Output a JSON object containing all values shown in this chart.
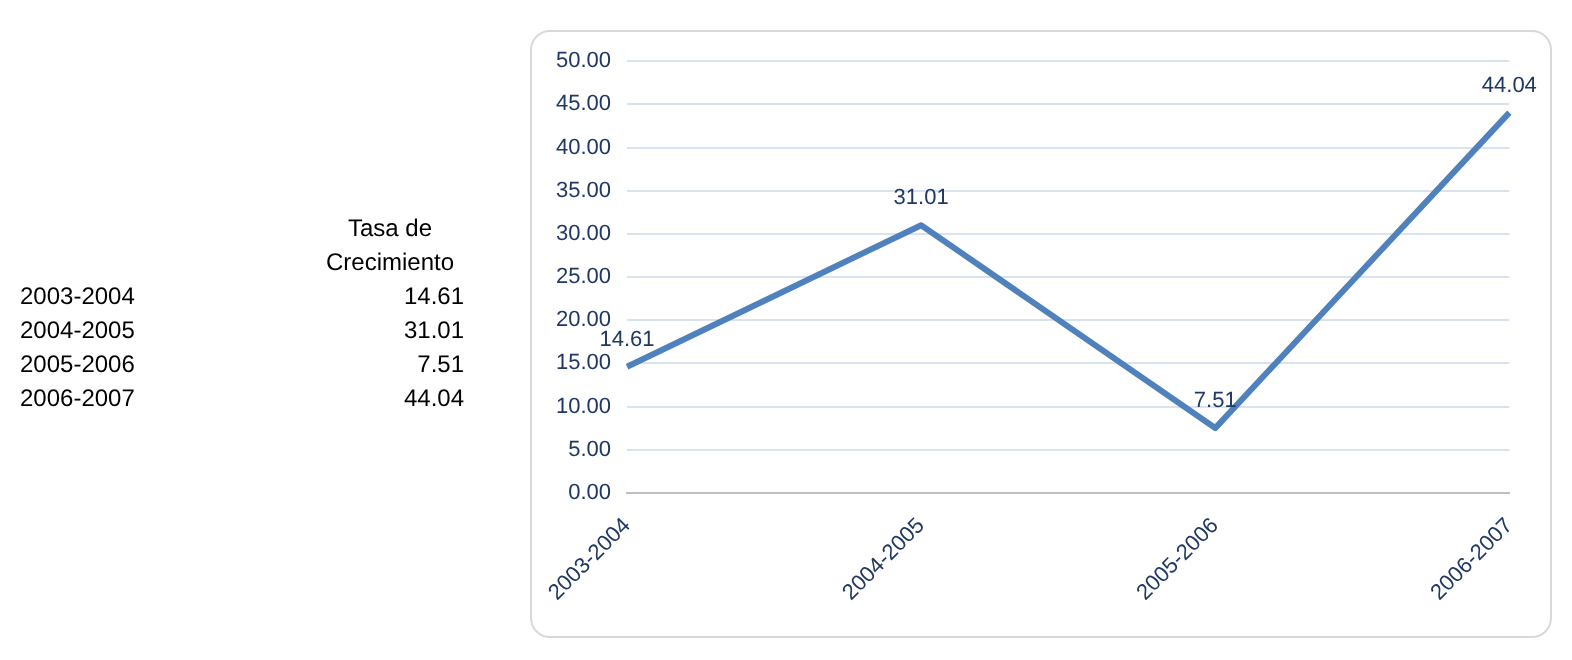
{
  "chart_data": {
    "type": "line",
    "categories": [
      "2003-2004",
      "2004-2005",
      "2005-2006",
      "2006-2007"
    ],
    "series": [
      {
        "name": "Tasa de Crecimiento",
        "color": "#4f81bd",
        "values": [
          14.61,
          31.01,
          7.51,
          44.04
        ]
      }
    ],
    "annotations": [
      "14.61",
      "31.01",
      "7.51",
      "44.04"
    ],
    "ylim": [
      0,
      50
    ],
    "yticks": [
      {
        "value": 0,
        "label": "0.00"
      },
      {
        "value": 5,
        "label": "5.00"
      },
      {
        "value": 10,
        "label": "10.00"
      },
      {
        "value": 15,
        "label": "15.00"
      },
      {
        "value": 20,
        "label": "20.00"
      },
      {
        "value": 25,
        "label": "25.00"
      },
      {
        "value": 30,
        "label": "30.00"
      },
      {
        "value": 35,
        "label": "35.00"
      },
      {
        "value": 40,
        "label": "40.00"
      },
      {
        "value": 45,
        "label": "45.00"
      },
      {
        "value": 50,
        "label": "50.00"
      }
    ],
    "grid": "y",
    "legend": false,
    "marker": "none",
    "line_style": "solid",
    "data_labels": true
  }
}
